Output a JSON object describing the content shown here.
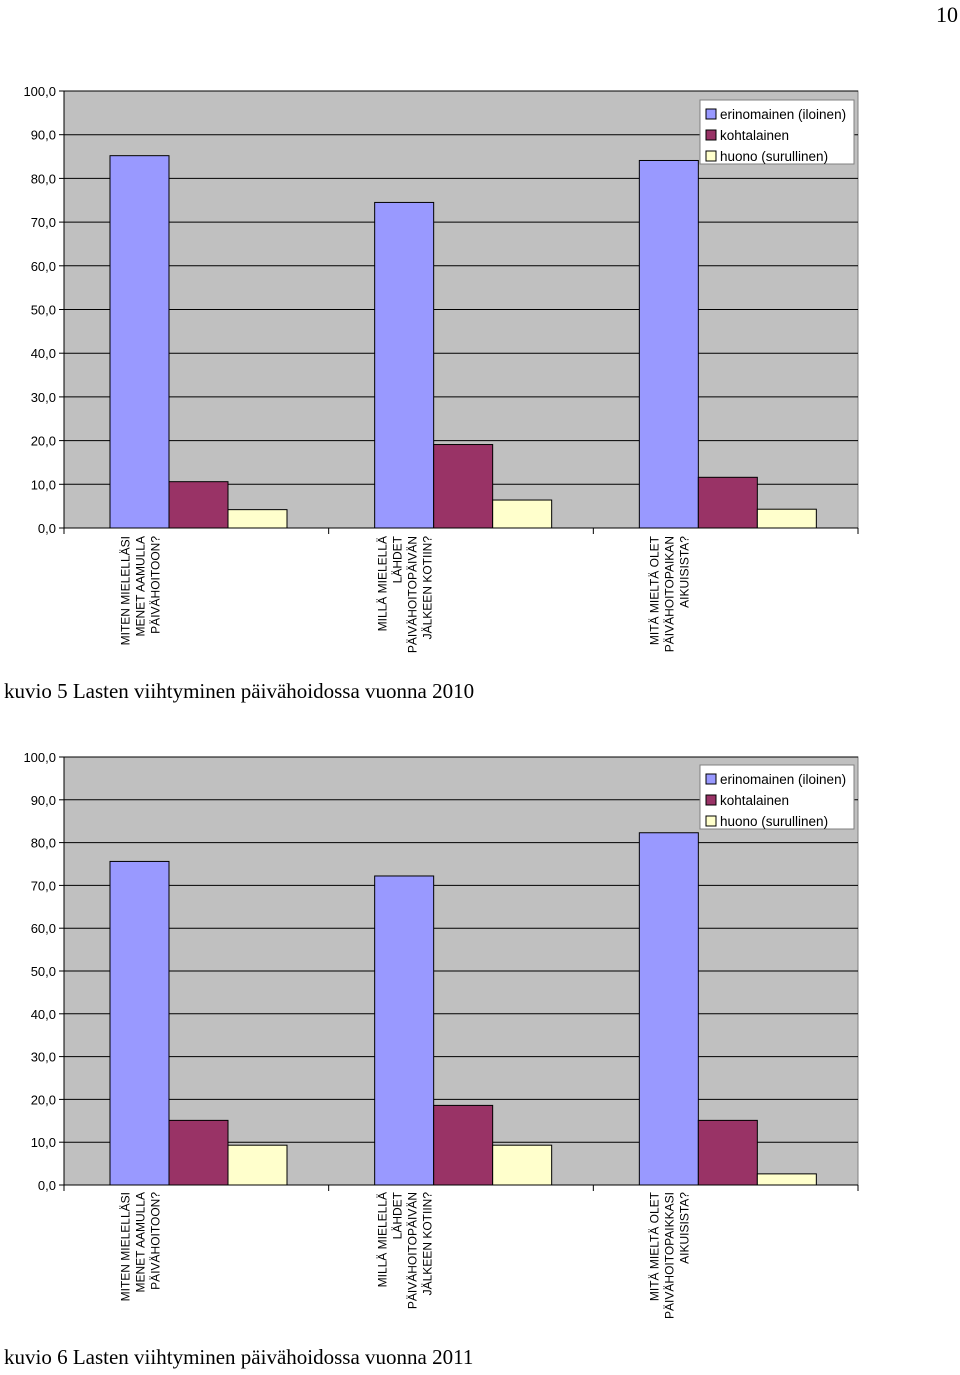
{
  "page_number": "10",
  "colors": {
    "plot_bg": "#c0c0c0",
    "grid": "#000000",
    "series": [
      "#9999ff",
      "#993366",
      "#ffffcc"
    ]
  },
  "chart_data": [
    {
      "type": "bar",
      "caption": "kuvio 5 Lasten viihtyminen päivähoidossa vuonna 2010",
      "ylim": [
        0,
        100
      ],
      "yticks": [
        "0,0",
        "10,0",
        "20,0",
        "30,0",
        "40,0",
        "50,0",
        "60,0",
        "70,0",
        "80,0",
        "90,0",
        "100,0"
      ],
      "legend_position": "top-right",
      "categories": [
        [
          "MITEN MIELELLÄSI",
          "MENET AAMULLA",
          "PÄIVÄHOITOON?"
        ],
        [
          "MILLÄ MIELELLÄ",
          "LÄHDET",
          "PÄIVÄHOITOPÄIVÄN",
          "JÄLKEEN KOTIIN?"
        ],
        [
          "MITÄ MIELTÄ OLET",
          "PÄIVÄHOITOPAIKAN",
          "AIKUISISTA?"
        ]
      ],
      "series": [
        {
          "name": "erinomainen (iloinen)",
          "values": [
            85.2,
            74.5,
            84.1
          ]
        },
        {
          "name": "kohtalainen",
          "values": [
            10.6,
            19.1,
            11.6
          ]
        },
        {
          "name": "huono (surullinen)",
          "values": [
            4.2,
            6.4,
            4.3
          ]
        }
      ]
    },
    {
      "type": "bar",
      "caption": "kuvio 6 Lasten viihtyminen päivähoidossa vuonna 2011",
      "ylim": [
        0,
        100
      ],
      "yticks": [
        "0,0",
        "10,0",
        "20,0",
        "30,0",
        "40,0",
        "50,0",
        "60,0",
        "70,0",
        "80,0",
        "90,0",
        "100,0"
      ],
      "legend_position": "top-right",
      "categories": [
        [
          "MITEN MIELELLÄSI",
          "MENET AAMULLA",
          "PÄIVÄHOITOON?"
        ],
        [
          "MILLÄ MIELELLÄ",
          "LÄHDET",
          "PÄIVÄHOITOPÄIVÄN",
          "JÄLKEEN KOTIIN?"
        ],
        [
          "MITÄ MIELTÄ OLET",
          "PÄIVÄHOITOPAIKKASI",
          "AIKUISISTA?"
        ]
      ],
      "series": [
        {
          "name": "erinomainen (iloinen)",
          "values": [
            75.6,
            72.2,
            82.3
          ]
        },
        {
          "name": "kohtalainen",
          "values": [
            15.1,
            18.6,
            15.1
          ]
        },
        {
          "name": "huono (surullinen)",
          "values": [
            9.3,
            9.3,
            2.6
          ]
        }
      ]
    }
  ]
}
